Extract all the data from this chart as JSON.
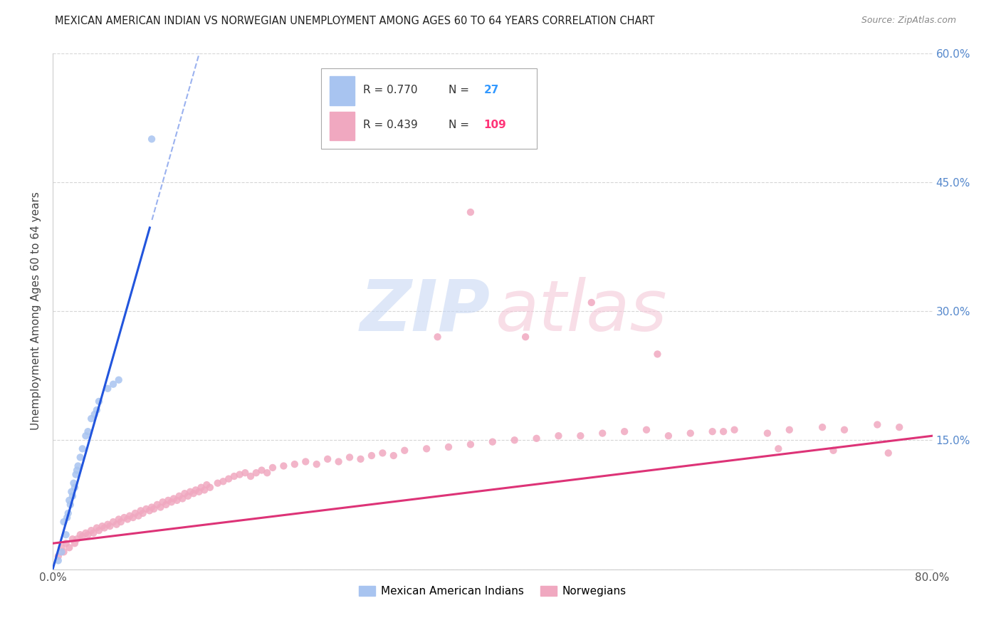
{
  "title": "MEXICAN AMERICAN INDIAN VS NORWEGIAN UNEMPLOYMENT AMONG AGES 60 TO 64 YEARS CORRELATION CHART",
  "source": "Source: ZipAtlas.com",
  "ylabel": "Unemployment Among Ages 60 to 64 years",
  "xlim": [
    0,
    0.8
  ],
  "ylim": [
    0,
    0.6
  ],
  "blue_R": "0.770",
  "blue_N": "27",
  "pink_R": "0.439",
  "pink_N": "109",
  "blue_color": "#a8c4f0",
  "pink_color": "#f0a8c0",
  "blue_trend_color": "#2255dd",
  "pink_trend_color": "#dd3377",
  "legend_label_blue": "Mexican American Indians",
  "legend_label_pink": "Norwegians",
  "blue_scatter_x": [
    0.005,
    0.008,
    0.01,
    0.012,
    0.013,
    0.014,
    0.015,
    0.016,
    0.017,
    0.018,
    0.019,
    0.02,
    0.021,
    0.022,
    0.023,
    0.025,
    0.027,
    0.03,
    0.032,
    0.035,
    0.038,
    0.04,
    0.042,
    0.05,
    0.055,
    0.06,
    0.09
  ],
  "blue_scatter_y": [
    0.01,
    0.02,
    0.055,
    0.04,
    0.06,
    0.065,
    0.08,
    0.075,
    0.09,
    0.085,
    0.1,
    0.095,
    0.11,
    0.115,
    0.12,
    0.13,
    0.14,
    0.155,
    0.16,
    0.175,
    0.18,
    0.185,
    0.195,
    0.21,
    0.215,
    0.22,
    0.5
  ],
  "pink_scatter_x": [
    0.005,
    0.008,
    0.01,
    0.012,
    0.015,
    0.018,
    0.02,
    0.022,
    0.025,
    0.027,
    0.03,
    0.032,
    0.035,
    0.037,
    0.04,
    0.042,
    0.045,
    0.047,
    0.05,
    0.052,
    0.055,
    0.058,
    0.06,
    0.062,
    0.065,
    0.068,
    0.07,
    0.073,
    0.075,
    0.078,
    0.08,
    0.082,
    0.085,
    0.088,
    0.09,
    0.092,
    0.095,
    0.098,
    0.1,
    0.103,
    0.105,
    0.108,
    0.11,
    0.113,
    0.115,
    0.118,
    0.12,
    0.123,
    0.125,
    0.128,
    0.13,
    0.133,
    0.135,
    0.138,
    0.14,
    0.143,
    0.15,
    0.155,
    0.16,
    0.165,
    0.17,
    0.175,
    0.18,
    0.185,
    0.19,
    0.195,
    0.2,
    0.21,
    0.22,
    0.23,
    0.24,
    0.25,
    0.26,
    0.27,
    0.28,
    0.29,
    0.3,
    0.31,
    0.32,
    0.34,
    0.36,
    0.38,
    0.4,
    0.42,
    0.44,
    0.46,
    0.48,
    0.5,
    0.52,
    0.54,
    0.56,
    0.58,
    0.6,
    0.62,
    0.65,
    0.67,
    0.7,
    0.72,
    0.75,
    0.77,
    0.35,
    0.43,
    0.49,
    0.55,
    0.61,
    0.66,
    0.71,
    0.76,
    0.38
  ],
  "pink_scatter_y": [
    0.015,
    0.025,
    0.02,
    0.03,
    0.025,
    0.035,
    0.03,
    0.035,
    0.04,
    0.038,
    0.042,
    0.04,
    0.045,
    0.042,
    0.048,
    0.045,
    0.05,
    0.048,
    0.052,
    0.05,
    0.055,
    0.052,
    0.058,
    0.055,
    0.06,
    0.058,
    0.062,
    0.06,
    0.065,
    0.062,
    0.068,
    0.065,
    0.07,
    0.068,
    0.072,
    0.07,
    0.075,
    0.072,
    0.078,
    0.075,
    0.08,
    0.078,
    0.082,
    0.08,
    0.085,
    0.082,
    0.088,
    0.085,
    0.09,
    0.088,
    0.092,
    0.09,
    0.095,
    0.092,
    0.098,
    0.095,
    0.1,
    0.102,
    0.105,
    0.108,
    0.11,
    0.112,
    0.108,
    0.112,
    0.115,
    0.112,
    0.118,
    0.12,
    0.122,
    0.125,
    0.122,
    0.128,
    0.125,
    0.13,
    0.128,
    0.132,
    0.135,
    0.132,
    0.138,
    0.14,
    0.142,
    0.145,
    0.148,
    0.15,
    0.152,
    0.155,
    0.155,
    0.158,
    0.16,
    0.162,
    0.155,
    0.158,
    0.16,
    0.162,
    0.158,
    0.162,
    0.165,
    0.162,
    0.168,
    0.165,
    0.27,
    0.27,
    0.31,
    0.25,
    0.16,
    0.14,
    0.138,
    0.135,
    0.415
  ]
}
